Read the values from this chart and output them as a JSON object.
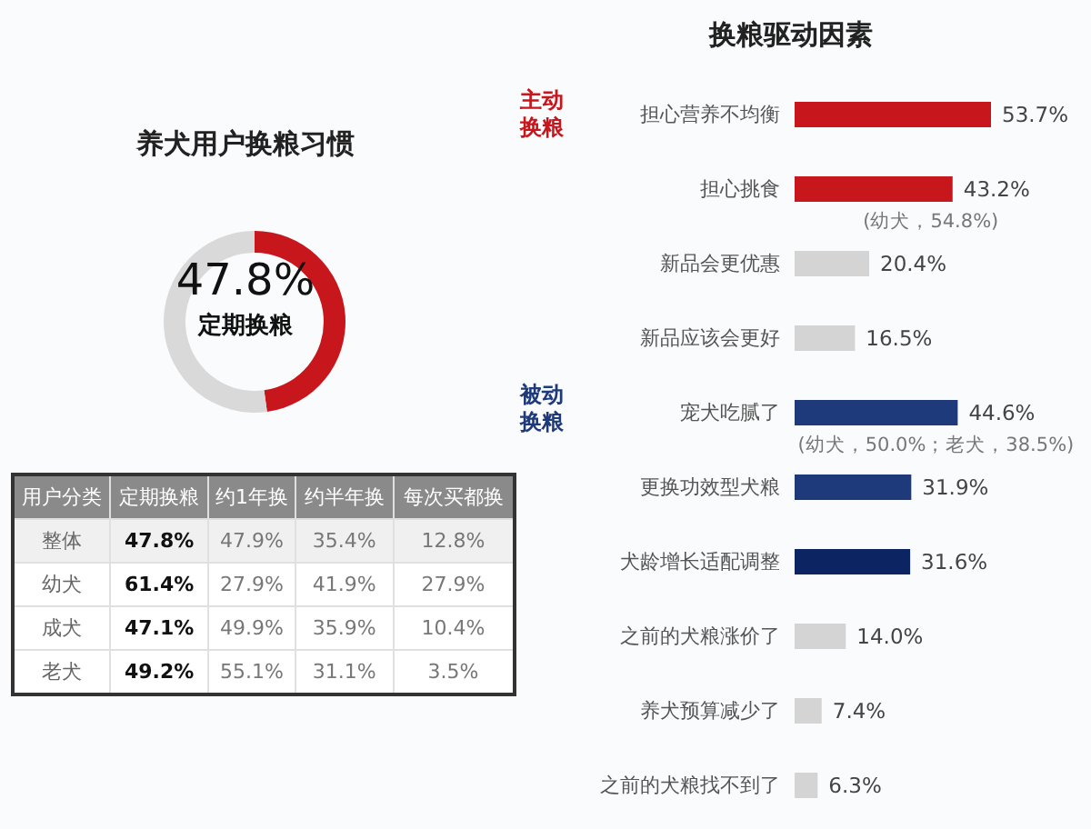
{
  "chart_data": [
    {
      "type": "donut",
      "title": "养犬用户换粮习惯",
      "categories": [
        "定期换粮",
        null
      ],
      "values": [
        47.8,
        52.2
      ],
      "colors": [
        "#c8161d",
        "#d9d9d9"
      ],
      "value_labels": [
        "47.8%",
        null
      ],
      "legend": false
    },
    {
      "type": "heatmap",
      "ylabel": "用户分类",
      "categories": [
        "定期换粮",
        "约1年换",
        "约半年换",
        "每次买都换"
      ],
      "y_categories": [
        "整体",
        "幼犬",
        "成犬",
        "老犬"
      ],
      "cells": [
        [
          47.8,
          47.9,
          35.4,
          12.8
        ],
        [
          61.4,
          27.9,
          41.9,
          27.9
        ],
        [
          47.1,
          49.9,
          35.9,
          10.4
        ],
        [
          49.2,
          55.1,
          31.1,
          3.5
        ]
      ],
      "cell_labels": [
        [
          "47.8%",
          "47.9%",
          "35.4%",
          "12.8%"
        ],
        [
          "61.4%",
          "27.9%",
          "41.9%",
          "27.9%"
        ],
        [
          "47.1%",
          "49.9%",
          "35.9%",
          "10.4%"
        ],
        [
          "49.2%",
          "55.1%",
          "31.1%",
          "3.5%"
        ]
      ]
    },
    {
      "type": "bar",
      "orientation": "horizontal",
      "title": "换粮驱动因素",
      "categories": [
        "担心营养不均衡",
        "担心挑食",
        "新品会更优惠",
        "新品应该会更好",
        "宠犬吃腻了",
        "更换功效型犬粮",
        "犬龄增长适配调整",
        "之前的犬粮涨价了",
        "养犬预算减少了",
        "之前的犬粮找不到了"
      ],
      "values": [
        53.7,
        43.2,
        20.4,
        16.5,
        44.6,
        31.9,
        31.6,
        14.0,
        7.4,
        6.3
      ],
      "colors": [
        "#c8161d",
        "#c8161d",
        "#d4d4d4",
        "#d4d4d4",
        "#1f3a7a",
        "#1f3a7a",
        "#0d2463",
        "#d4d4d4",
        "#d4d4d4",
        "#d4d4d4"
      ],
      "value_labels": [
        "53.7%",
        "43.2%",
        "20.4%",
        "16.5%",
        "44.6%",
        "31.9%",
        "31.6%",
        "14.0%",
        "7.4%",
        "6.3%"
      ],
      "annotations": [
        "主动换粮",
        "被动换粮",
        {
          "text": "(幼犬，54.8%)",
          "x": 43.2,
          "y": "担心挑食"
        },
        {
          "text": "(幼犬，50.0%；老犬，38.5%)",
          "x": 44.6,
          "y": "宠犬吃腻了"
        }
      ],
      "legend": false,
      "grid": false
    }
  ]
}
